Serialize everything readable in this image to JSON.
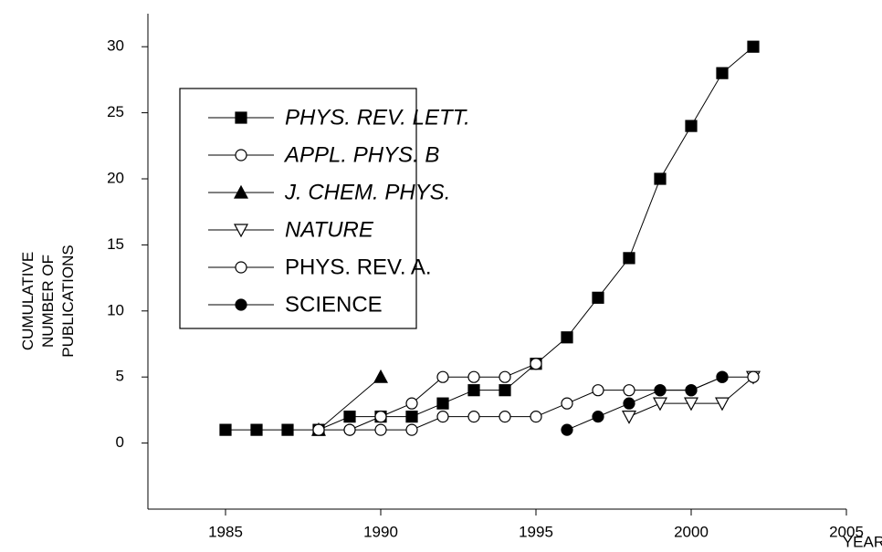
{
  "chart_data": {
    "type": "line",
    "x_label": "YEAR",
    "y_label": [
      "CUMULATIVE",
      "NUMBER OF",
      "PUBLICATIONS"
    ],
    "xlim": [
      1982.5,
      2005
    ],
    "xticks": [
      1985,
      1990,
      1995,
      2000,
      2005
    ],
    "ylim": [
      -5,
      32.5
    ],
    "yticks": [
      0,
      5,
      10,
      15,
      20,
      25,
      30
    ],
    "legend": "upper left",
    "series": [
      {
        "name": "PHYS. REV. LETT.",
        "italic": true,
        "marker": "square",
        "filled": true,
        "color": "#000000",
        "x": [
          1985,
          1986,
          1987,
          1988,
          1989,
          1990,
          1991,
          1992,
          1993,
          1994,
          1995,
          1996,
          1997,
          1998,
          1999,
          2000,
          2001,
          2002
        ],
        "values": [
          1,
          1,
          1,
          1,
          2,
          2,
          2,
          3,
          4,
          4,
          6,
          8,
          11,
          14,
          20,
          24,
          28,
          30
        ]
      },
      {
        "name": "APPL. PHYS. B",
        "italic": true,
        "marker": "circle",
        "filled": false,
        "color": "#000000",
        "x": [
          1989,
          1990,
          1991,
          1992,
          1993,
          1994,
          1995
        ],
        "values": [
          1,
          2,
          3,
          5,
          5,
          5,
          6
        ]
      },
      {
        "name": "J. CHEM. PHYS.",
        "italic": true,
        "marker": "triangle-up",
        "filled": true,
        "color": "#000000",
        "x": [
          1988,
          1990
        ],
        "values": [
          1,
          5
        ]
      },
      {
        "name": "NATURE",
        "italic": true,
        "marker": "triangle-down",
        "filled": false,
        "color": "#000000",
        "x": [
          1998,
          1999,
          2000,
          2001,
          2002
        ],
        "values": [
          2,
          3,
          3,
          3,
          5
        ]
      },
      {
        "name": "PHYS. REV. A.",
        "italic": false,
        "marker": "circle",
        "filled": false,
        "color": "#000000",
        "x": [
          1988,
          1989,
          1990,
          1991,
          1992,
          1993,
          1994,
          1995,
          1996,
          1997,
          1998,
          1999,
          2000,
          2001,
          2002
        ],
        "values": [
          1,
          1,
          1,
          1,
          2,
          2,
          2,
          2,
          3,
          4,
          4,
          4,
          4,
          5,
          5
        ]
      },
      {
        "name": "SCIENCE",
        "italic": false,
        "marker": "circle",
        "filled": true,
        "color": "#000000",
        "x": [
          1996,
          1997,
          1998,
          1999,
          2000,
          2001
        ],
        "values": [
          1,
          2,
          3,
          4,
          4,
          5
        ]
      }
    ]
  }
}
